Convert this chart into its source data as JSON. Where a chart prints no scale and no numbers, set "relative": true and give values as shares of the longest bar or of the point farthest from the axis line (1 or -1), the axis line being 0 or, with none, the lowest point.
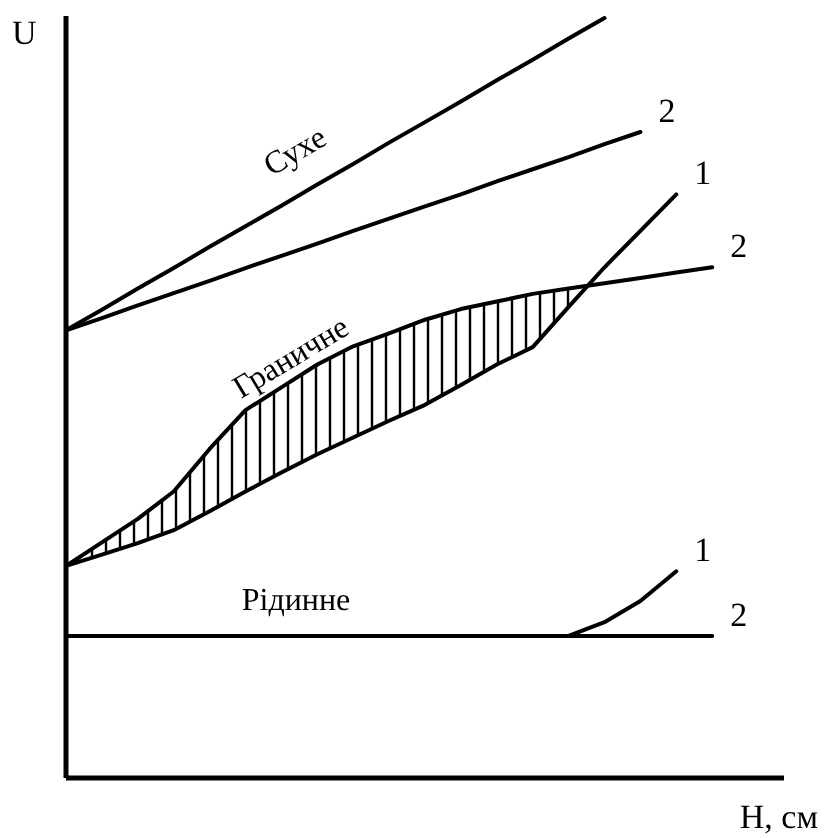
{
  "chart_data": {
    "type": "line",
    "relative": true,
    "xlabel": "H, см",
    "ylabel": "U",
    "marker": "none",
    "line_style": "solid",
    "categories": [
      null,
      null,
      null,
      null,
      null,
      null,
      null,
      null,
      null,
      null,
      null,
      null,
      null,
      null,
      null,
      null,
      null,
      null,
      null,
      null,
      null
    ],
    "series": [
      {
        "color": "#000000",
        "values": [
          0.589,
          0.616,
          0.644,
          0.671,
          0.699,
          0.726,
          0.753,
          0.781,
          0.808,
          0.836,
          0.863,
          0.89,
          0.918,
          0.945,
          0.973,
          1,
          null,
          null,
          null,
          null,
          null
        ]
      },
      {
        "name": "2",
        "color": "#000000",
        "values": [
          0.589,
          0.605,
          0.622,
          0.638,
          0.654,
          0.671,
          0.687,
          0.703,
          0.72,
          0.736,
          0.752,
          0.768,
          0.785,
          0.801,
          0.817,
          0.834,
          0.85,
          null,
          null,
          null,
          null
        ]
      },
      {
        "name": "1",
        "color": "#000000",
        "values": [
          0.279,
          0.294,
          0.309,
          0.326,
          0.351,
          0.377,
          0.402,
          0.426,
          0.448,
          0.47,
          0.491,
          0.517,
          0.544,
          0.567,
          0.62,
          0.672,
          0.72,
          0.768,
          null,
          null,
          null
        ]
      },
      {
        "name": "2",
        "color": "#000000",
        "values": [
          0.279,
          0.31,
          0.341,
          0.377,
          0.433,
          0.484,
          0.514,
          0.544,
          0.568,
          0.585,
          0.603,
          0.617,
          0.627,
          0.637,
          0.644,
          0.651,
          0.658,
          0.665,
          0.672,
          null,
          null
        ]
      },
      {
        "name": "1",
        "color": "#000000",
        "values": [
          null,
          null,
          null,
          null,
          null,
          null,
          null,
          null,
          null,
          null,
          null,
          null,
          null,
          null,
          0.187,
          0.205,
          0.233,
          0.272,
          null,
          null,
          null
        ]
      },
      {
        "name": "2",
        "color": "#000000",
        "values": [
          0.187,
          0.187,
          0.187,
          0.187,
          0.187,
          0.187,
          0.187,
          0.187,
          0.187,
          0.187,
          0.187,
          0.187,
          0.187,
          0.187,
          0.187,
          0.187,
          0.187,
          0.187,
          0.187,
          null,
          null
        ]
      }
    ],
    "annotations": [
      "Сухе",
      "Граничне",
      "Рідинне"
    ]
  }
}
